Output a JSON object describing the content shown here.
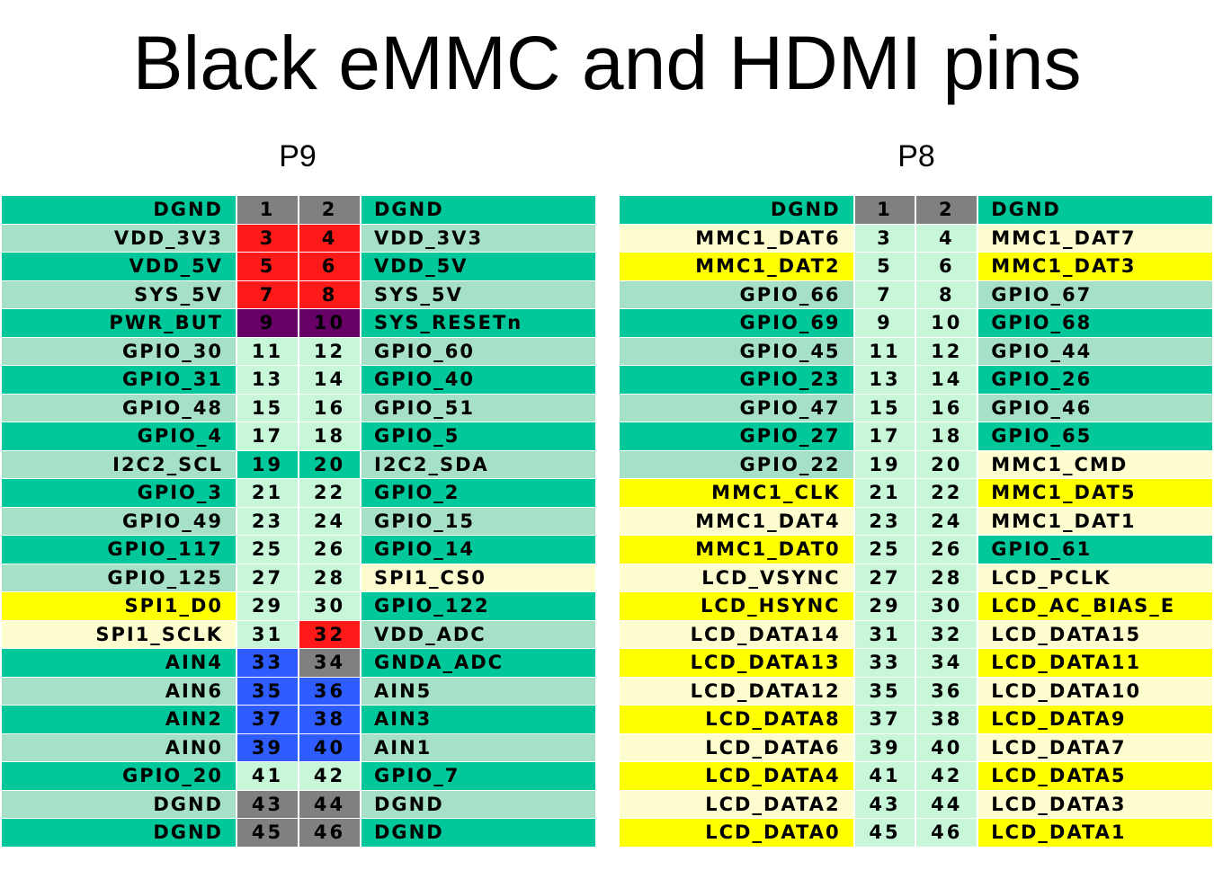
{
  "title": "Black eMMC and HDMI pins",
  "colors": {
    "dark": "#00c89a",
    "mid": "#a6e0c6",
    "light": "#c8f6d9",
    "gray": "#808080",
    "red": "#ff1a1a",
    "purple": "#660066",
    "blue": "#2e5cff",
    "yellow": "#ffff00",
    "cream": "#fdfdd0"
  },
  "headers": [
    {
      "label": "P9",
      "rows": [
        {
          "lname": "DGND",
          "lcolor": "dark",
          "lnum": "1",
          "lnumColor": "gray",
          "rnum": "2",
          "rnumColor": "gray",
          "rname": "DGND",
          "rcolor": "dark"
        },
        {
          "lname": "VDD_3V3",
          "lcolor": "mid",
          "lnum": "3",
          "lnumColor": "red",
          "rnum": "4",
          "rnumColor": "red",
          "rname": "VDD_3V3",
          "rcolor": "mid"
        },
        {
          "lname": "VDD_5V",
          "lcolor": "dark",
          "lnum": "5",
          "lnumColor": "red",
          "rnum": "6",
          "rnumColor": "red",
          "rname": "VDD_5V",
          "rcolor": "dark"
        },
        {
          "lname": "SYS_5V",
          "lcolor": "mid",
          "lnum": "7",
          "lnumColor": "red",
          "rnum": "8",
          "rnumColor": "red",
          "rname": "SYS_5V",
          "rcolor": "mid"
        },
        {
          "lname": "PWR_BUT",
          "lcolor": "dark",
          "lnum": "9",
          "lnumColor": "purple",
          "rnum": "10",
          "rnumColor": "purple",
          "rname": "SYS_RESETn",
          "rcolor": "dark"
        },
        {
          "lname": "GPIO_30",
          "lcolor": "mid",
          "lnum": "11",
          "lnumColor": "light",
          "rnum": "12",
          "rnumColor": "light",
          "rname": "GPIO_60",
          "rcolor": "mid"
        },
        {
          "lname": "GPIO_31",
          "lcolor": "dark",
          "lnum": "13",
          "lnumColor": "light",
          "rnum": "14",
          "rnumColor": "light",
          "rname": "GPIO_40",
          "rcolor": "dark"
        },
        {
          "lname": "GPIO_48",
          "lcolor": "mid",
          "lnum": "15",
          "lnumColor": "light",
          "rnum": "16",
          "rnumColor": "light",
          "rname": "GPIO_51",
          "rcolor": "mid"
        },
        {
          "lname": "GPIO_4",
          "lcolor": "dark",
          "lnum": "17",
          "lnumColor": "light",
          "rnum": "18",
          "rnumColor": "light",
          "rname": "GPIO_5",
          "rcolor": "dark"
        },
        {
          "lname": "I2C2_SCL",
          "lcolor": "mid",
          "lnum": "19",
          "lnumColor": "dark",
          "rnum": "20",
          "rnumColor": "dark",
          "rname": "I2C2_SDA",
          "rcolor": "mid"
        },
        {
          "lname": "GPIO_3",
          "lcolor": "dark",
          "lnum": "21",
          "lnumColor": "light",
          "rnum": "22",
          "rnumColor": "light",
          "rname": "GPIO_2",
          "rcolor": "dark"
        },
        {
          "lname": "GPIO_49",
          "lcolor": "mid",
          "lnum": "23",
          "lnumColor": "light",
          "rnum": "24",
          "rnumColor": "light",
          "rname": "GPIO_15",
          "rcolor": "mid"
        },
        {
          "lname": "GPIO_117",
          "lcolor": "dark",
          "lnum": "25",
          "lnumColor": "light",
          "rnum": "26",
          "rnumColor": "light",
          "rname": "GPIO_14",
          "rcolor": "dark"
        },
        {
          "lname": "GPIO_125",
          "lcolor": "mid",
          "lnum": "27",
          "lnumColor": "light",
          "rnum": "28",
          "rnumColor": "light",
          "rname": "SPI1_CS0",
          "rcolor": "cream"
        },
        {
          "lname": "SPI1_D0",
          "lcolor": "yellow",
          "lnum": "29",
          "lnumColor": "light",
          "rnum": "30",
          "rnumColor": "light",
          "rname": "GPIO_122",
          "rcolor": "dark"
        },
        {
          "lname": "SPI1_SCLK",
          "lcolor": "cream",
          "lnum": "31",
          "lnumColor": "light",
          "rnum": "32",
          "rnumColor": "red",
          "rname": "VDD_ADC",
          "rcolor": "mid"
        },
        {
          "lname": "AIN4",
          "lcolor": "dark",
          "lnum": "33",
          "lnumColor": "blue",
          "rnum": "34",
          "rnumColor": "gray",
          "rname": "GNDA_ADC",
          "rcolor": "dark"
        },
        {
          "lname": "AIN6",
          "lcolor": "mid",
          "lnum": "35",
          "lnumColor": "blue",
          "rnum": "36",
          "rnumColor": "blue",
          "rname": "AIN5",
          "rcolor": "mid"
        },
        {
          "lname": "AIN2",
          "lcolor": "dark",
          "lnum": "37",
          "lnumColor": "blue",
          "rnum": "38",
          "rnumColor": "blue",
          "rname": "AIN3",
          "rcolor": "dark"
        },
        {
          "lname": "AIN0",
          "lcolor": "mid",
          "lnum": "39",
          "lnumColor": "blue",
          "rnum": "40",
          "rnumColor": "blue",
          "rname": "AIN1",
          "rcolor": "mid"
        },
        {
          "lname": "GPIO_20",
          "lcolor": "dark",
          "lnum": "41",
          "lnumColor": "light",
          "rnum": "42",
          "rnumColor": "light",
          "rname": "GPIO_7",
          "rcolor": "dark"
        },
        {
          "lname": "DGND",
          "lcolor": "mid",
          "lnum": "43",
          "lnumColor": "gray",
          "rnum": "44",
          "rnumColor": "gray",
          "rname": "DGND",
          "rcolor": "mid"
        },
        {
          "lname": "DGND",
          "lcolor": "dark",
          "lnum": "45",
          "lnumColor": "gray",
          "rnum": "46",
          "rnumColor": "gray",
          "rname": "DGND",
          "rcolor": "dark"
        }
      ]
    },
    {
      "label": "P8",
      "rows": [
        {
          "lname": "DGND",
          "lcolor": "dark",
          "lnum": "1",
          "lnumColor": "gray",
          "rnum": "2",
          "rnumColor": "gray",
          "rname": "DGND",
          "rcolor": "dark"
        },
        {
          "lname": "MMC1_DAT6",
          "lcolor": "cream",
          "lnum": "3",
          "lnumColor": "light",
          "rnum": "4",
          "rnumColor": "light",
          "rname": "MMC1_DAT7",
          "rcolor": "cream"
        },
        {
          "lname": "MMC1_DAT2",
          "lcolor": "yellow",
          "lnum": "5",
          "lnumColor": "light",
          "rnum": "6",
          "rnumColor": "light",
          "rname": "MMC1_DAT3",
          "rcolor": "yellow"
        },
        {
          "lname": "GPIO_66",
          "lcolor": "mid",
          "lnum": "7",
          "lnumColor": "light",
          "rnum": "8",
          "rnumColor": "light",
          "rname": "GPIO_67",
          "rcolor": "mid"
        },
        {
          "lname": "GPIO_69",
          "lcolor": "dark",
          "lnum": "9",
          "lnumColor": "light",
          "rnum": "10",
          "rnumColor": "light",
          "rname": "GPIO_68",
          "rcolor": "dark"
        },
        {
          "lname": "GPIO_45",
          "lcolor": "mid",
          "lnum": "11",
          "lnumColor": "light",
          "rnum": "12",
          "rnumColor": "light",
          "rname": "GPIO_44",
          "rcolor": "mid"
        },
        {
          "lname": "GPIO_23",
          "lcolor": "dark",
          "lnum": "13",
          "lnumColor": "light",
          "rnum": "14",
          "rnumColor": "light",
          "rname": "GPIO_26",
          "rcolor": "dark"
        },
        {
          "lname": "GPIO_47",
          "lcolor": "mid",
          "lnum": "15",
          "lnumColor": "light",
          "rnum": "16",
          "rnumColor": "light",
          "rname": "GPIO_46",
          "rcolor": "mid"
        },
        {
          "lname": "GPIO_27",
          "lcolor": "dark",
          "lnum": "17",
          "lnumColor": "light",
          "rnum": "18",
          "rnumColor": "light",
          "rname": "GPIO_65",
          "rcolor": "dark"
        },
        {
          "lname": "GPIO_22",
          "lcolor": "mid",
          "lnum": "19",
          "lnumColor": "light",
          "rnum": "20",
          "rnumColor": "light",
          "rname": "MMC1_CMD",
          "rcolor": "cream"
        },
        {
          "lname": "MMC1_CLK",
          "lcolor": "yellow",
          "lnum": "21",
          "lnumColor": "light",
          "rnum": "22",
          "rnumColor": "light",
          "rname": "MMC1_DAT5",
          "rcolor": "yellow"
        },
        {
          "lname": "MMC1_DAT4",
          "lcolor": "cream",
          "lnum": "23",
          "lnumColor": "light",
          "rnum": "24",
          "rnumColor": "light",
          "rname": "MMC1_DAT1",
          "rcolor": "cream"
        },
        {
          "lname": "MMC1_DAT0",
          "lcolor": "yellow",
          "lnum": "25",
          "lnumColor": "light",
          "rnum": "26",
          "rnumColor": "light",
          "rname": "GPIO_61",
          "rcolor": "dark"
        },
        {
          "lname": "LCD_VSYNC",
          "lcolor": "cream",
          "lnum": "27",
          "lnumColor": "light",
          "rnum": "28",
          "rnumColor": "light",
          "rname": "LCD_PCLK",
          "rcolor": "cream"
        },
        {
          "lname": "LCD_HSYNC",
          "lcolor": "yellow",
          "lnum": "29",
          "lnumColor": "light",
          "rnum": "30",
          "rnumColor": "light",
          "rname": "LCD_AC_BIAS_E",
          "rcolor": "yellow"
        },
        {
          "lname": "LCD_DATA14",
          "lcolor": "cream",
          "lnum": "31",
          "lnumColor": "light",
          "rnum": "32",
          "rnumColor": "light",
          "rname": "LCD_DATA15",
          "rcolor": "cream"
        },
        {
          "lname": "LCD_DATA13",
          "lcolor": "yellow",
          "lnum": "33",
          "lnumColor": "light",
          "rnum": "34",
          "rnumColor": "light",
          "rname": "LCD_DATA11",
          "rcolor": "yellow"
        },
        {
          "lname": "LCD_DATA12",
          "lcolor": "cream",
          "lnum": "35",
          "lnumColor": "light",
          "rnum": "36",
          "rnumColor": "light",
          "rname": "LCD_DATA10",
          "rcolor": "cream"
        },
        {
          "lname": "LCD_DATA8",
          "lcolor": "yellow",
          "lnum": "37",
          "lnumColor": "light",
          "rnum": "38",
          "rnumColor": "light",
          "rname": "LCD_DATA9",
          "rcolor": "yellow"
        },
        {
          "lname": "LCD_DATA6",
          "lcolor": "cream",
          "lnum": "39",
          "lnumColor": "light",
          "rnum": "40",
          "rnumColor": "light",
          "rname": "LCD_DATA7",
          "rcolor": "cream"
        },
        {
          "lname": "LCD_DATA4",
          "lcolor": "yellow",
          "lnum": "41",
          "lnumColor": "light",
          "rnum": "42",
          "rnumColor": "light",
          "rname": "LCD_DATA5",
          "rcolor": "yellow"
        },
        {
          "lname": "LCD_DATA2",
          "lcolor": "cream",
          "lnum": "43",
          "lnumColor": "light",
          "rnum": "44",
          "rnumColor": "light",
          "rname": "LCD_DATA3",
          "rcolor": "cream"
        },
        {
          "lname": "LCD_DATA0",
          "lcolor": "yellow",
          "lnum": "45",
          "lnumColor": "light",
          "rnum": "46",
          "rnumColor": "light",
          "rname": "LCD_DATA1",
          "rcolor": "yellow"
        }
      ]
    }
  ]
}
